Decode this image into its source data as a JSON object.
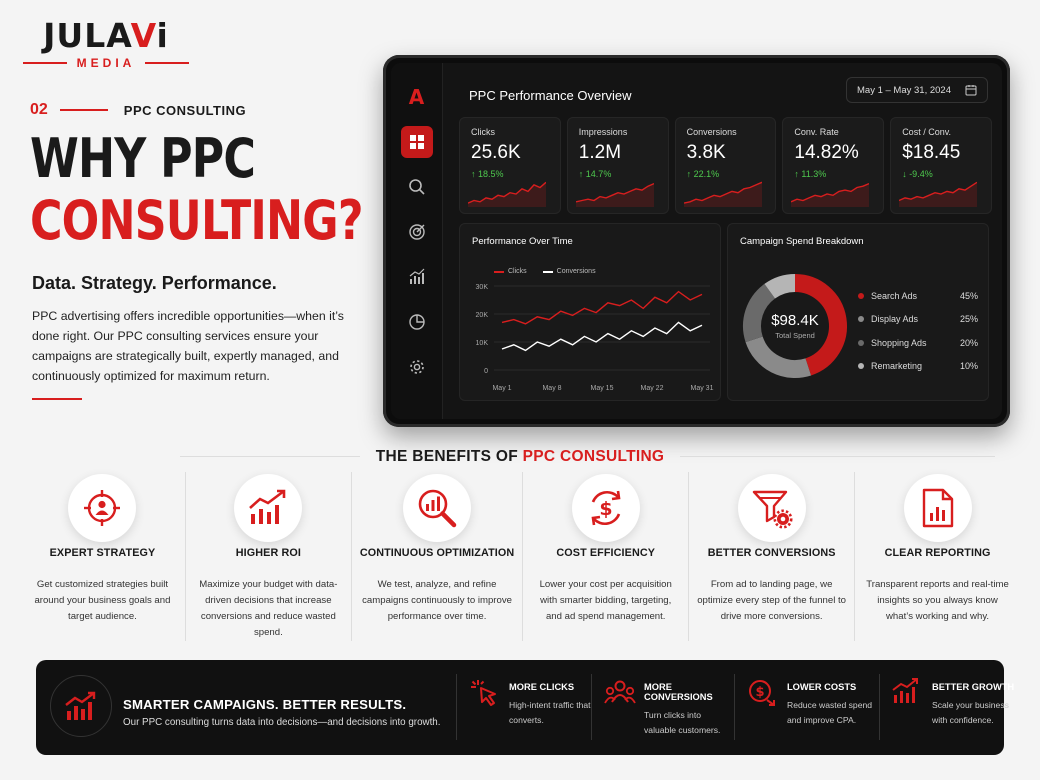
{
  "brand": {
    "name_left": "JULA",
    "name_accent": "V",
    "name_right": "i",
    "sub": "MEDIA"
  },
  "intro": {
    "section_number": "02",
    "section_label": "PPC CONSULTING",
    "title_line1": "WHY PPC",
    "title_line2": "CONSULTING?",
    "tagline": "Data. Strategy. Performance.",
    "body": "PPC advertising offers incredible opportunities—when it’s done right. Our PPC consulting services ensure your campaigns are strategically built, expertly managed, and continuously optimized for maximum return."
  },
  "dashboard": {
    "title": "PPC Performance Overview",
    "date_range": "May 1 – May 31, 2024",
    "logo_letter": "A",
    "nav_icons": [
      "grid-icon",
      "search-icon",
      "target-icon",
      "chart-icon",
      "pie-icon",
      "gear-icon"
    ],
    "kpis": [
      {
        "label": "Clicks",
        "value": "25.6K",
        "delta": "↑ 18.5%",
        "trend": "up"
      },
      {
        "label": "Impressions",
        "value": "1.2M",
        "delta": "↑ 14.7%",
        "trend": "up"
      },
      {
        "label": "Conversions",
        "value": "3.8K",
        "delta": "↑ 22.1%",
        "trend": "up"
      },
      {
        "label": "Conv. Rate",
        "value": "14.82%",
        "delta": "↑ 11.3%",
        "trend": "up"
      },
      {
        "label": "Cost / Conv.",
        "value": "$18.45",
        "delta": "↓ -9.4%",
        "trend": "down"
      }
    ],
    "time_panel": {
      "title": "Performance Over Time",
      "legend": [
        "Clicks",
        "Conversions"
      ],
      "y_ticks": [
        "30K",
        "20K",
        "10K",
        "0"
      ],
      "x_ticks": [
        "May 1",
        "May 8",
        "May 15",
        "May 22",
        "May 31"
      ]
    },
    "spend_panel": {
      "title": "Campaign Spend Breakdown",
      "total": "$98.4K",
      "total_label": "Total Spend"
    },
    "colors": {
      "accent": "#d81e1e",
      "positive": "#4ec94e"
    }
  },
  "chart_data": [
    {
      "type": "line",
      "title": "Performance Over Time",
      "x": [
        "May 1",
        "May 3",
        "May 5",
        "May 7",
        "May 8",
        "May 10",
        "May 12",
        "May 14",
        "May 15",
        "May 17",
        "May 19",
        "May 21",
        "May 22",
        "May 24",
        "May 26",
        "May 28",
        "May 29",
        "May 31"
      ],
      "series": [
        {
          "name": "Clicks",
          "values": [
            17,
            18,
            16.5,
            19,
            18,
            21,
            19.5,
            22,
            20.5,
            24,
            23,
            25,
            22,
            26,
            24,
            28,
            25,
            27
          ]
        },
        {
          "name": "Conversions",
          "values": [
            7.5,
            9,
            7,
            10,
            8.5,
            11,
            9,
            12,
            10,
            13,
            11,
            14,
            12,
            15,
            13,
            17,
            14,
            16
          ]
        }
      ],
      "ylim": [
        0,
        30
      ],
      "y_unit": "K"
    },
    {
      "type": "pie",
      "title": "Campaign Spend Breakdown",
      "categories": [
        "Search Ads",
        "Display Ads",
        "Shopping Ads",
        "Remarketing"
      ],
      "values": [
        45,
        25,
        20,
        10
      ],
      "labels": [
        "45%",
        "25%",
        "20%",
        "10%"
      ],
      "colors": [
        "#c41a1a",
        "#8a8a8a",
        "#6a6a6a",
        "#b5b5b5"
      ]
    }
  ],
  "benefits": {
    "title_prefix": "THE BENEFITS OF ",
    "title_accent": "PPC CONSULTING",
    "items": [
      {
        "title": "EXPERT STRATEGY",
        "desc": "Get customized strategies built around your business goals and target audience.",
        "icon": "target-person-icon"
      },
      {
        "title": "HIGHER ROI",
        "desc": "Maximize your budget with data-driven decisions that increase conversions and reduce wasted spend.",
        "icon": "growth-chart-icon"
      },
      {
        "title": "CONTINUOUS OPTIMIZATION",
        "desc": "We test, analyze, and refine campaigns continuously to improve performance over time.",
        "icon": "magnifier-chart-icon"
      },
      {
        "title": "COST EFFICIENCY",
        "desc": "Lower your cost per acquisition with smarter bidding, targeting, and ad spend management.",
        "icon": "dollar-cycle-icon"
      },
      {
        "title": "BETTER CONVERSIONS",
        "desc": "From ad to landing page, we optimize every step of the funnel to drive more conversions.",
        "icon": "funnel-gear-icon"
      },
      {
        "title": "CLEAR REPORTING",
        "desc": "Transparent reports and real-time insights so you always know what’s working and why.",
        "icon": "report-icon"
      }
    ]
  },
  "banner": {
    "title": "SMARTER CAMPAIGNS. BETTER RESULTS.",
    "subtitle": "Our PPC consulting turns data into decisions—and decisions into growth.",
    "items": [
      {
        "title": "MORE CLICKS",
        "desc": "High-intent traffic that converts.",
        "icon": "click-icon"
      },
      {
        "title": "MORE CONVERSIONS",
        "desc": "Turn clicks into valuable customers.",
        "icon": "people-icon"
      },
      {
        "title": "LOWER COSTS",
        "desc": "Reduce wasted spend and improve CPA.",
        "icon": "dollar-down-icon"
      },
      {
        "title": "BETTER GROWTH",
        "desc": "Scale your business with confidence.",
        "icon": "growth-bars-icon"
      }
    ]
  }
}
